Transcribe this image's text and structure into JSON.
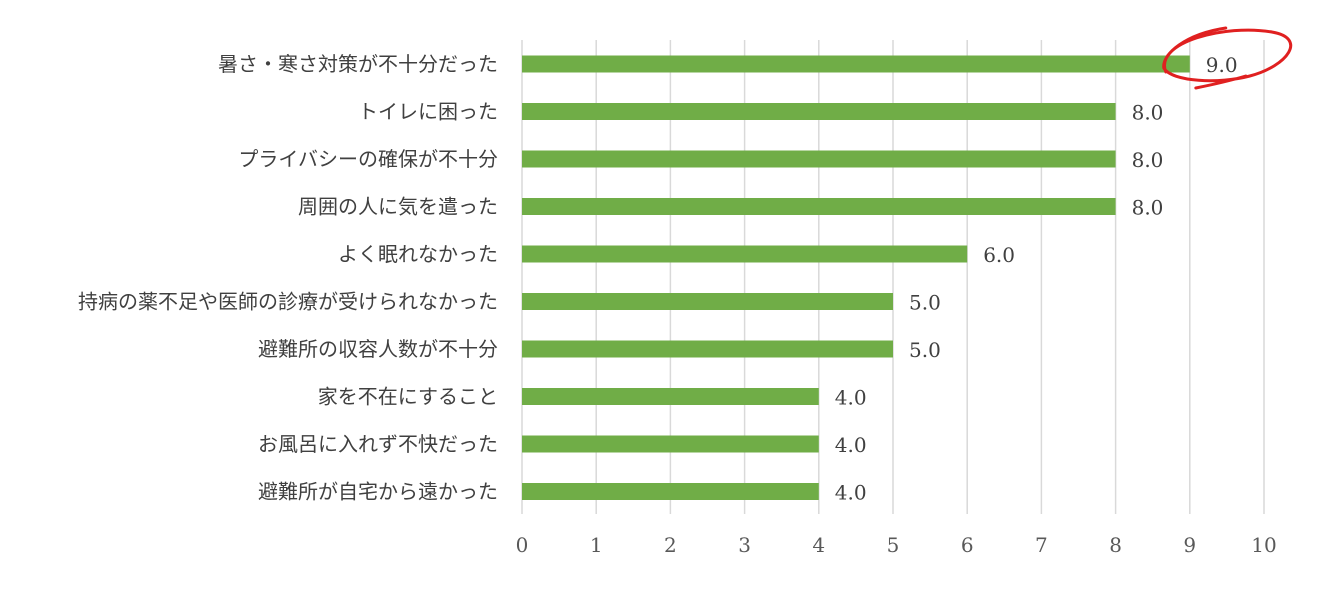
{
  "chart_data": {
    "type": "bar",
    "orientation": "horizontal",
    "title": "",
    "xlabel": "",
    "ylabel": "",
    "categories": [
      "暑さ・寒さ対策が不十分だった",
      "トイレに困った",
      "プライバシーの確保が不十分",
      "周囲の人に気を遣った",
      "よく眠れなかった",
      "持病の薬不足や医師の診療が受けられなかった",
      "避難所の収容人数が不十分",
      "家を不在にすること",
      "お風呂に入れず不快だった",
      "避難所が自宅から遠かった"
    ],
    "values": [
      9.0,
      8.0,
      8.0,
      8.0,
      6.0,
      5.0,
      5.0,
      4.0,
      4.0,
      4.0
    ],
    "value_labels": [
      "9.0",
      "8.0",
      "8.0",
      "8.0",
      "6.0",
      "5.0",
      "5.0",
      "4.0",
      "4.0",
      "4.0"
    ],
    "xlim": [
      0,
      10
    ],
    "xticks": [
      "0",
      "1",
      "2",
      "3",
      "4",
      "5",
      "6",
      "7",
      "8",
      "9",
      "10"
    ],
    "grid": "vertical",
    "legend": "none",
    "bar_color": "#70ad47",
    "highlight": {
      "category_index": 0,
      "shape": "hand-drawn-ellipse",
      "color": "#e02020"
    }
  }
}
